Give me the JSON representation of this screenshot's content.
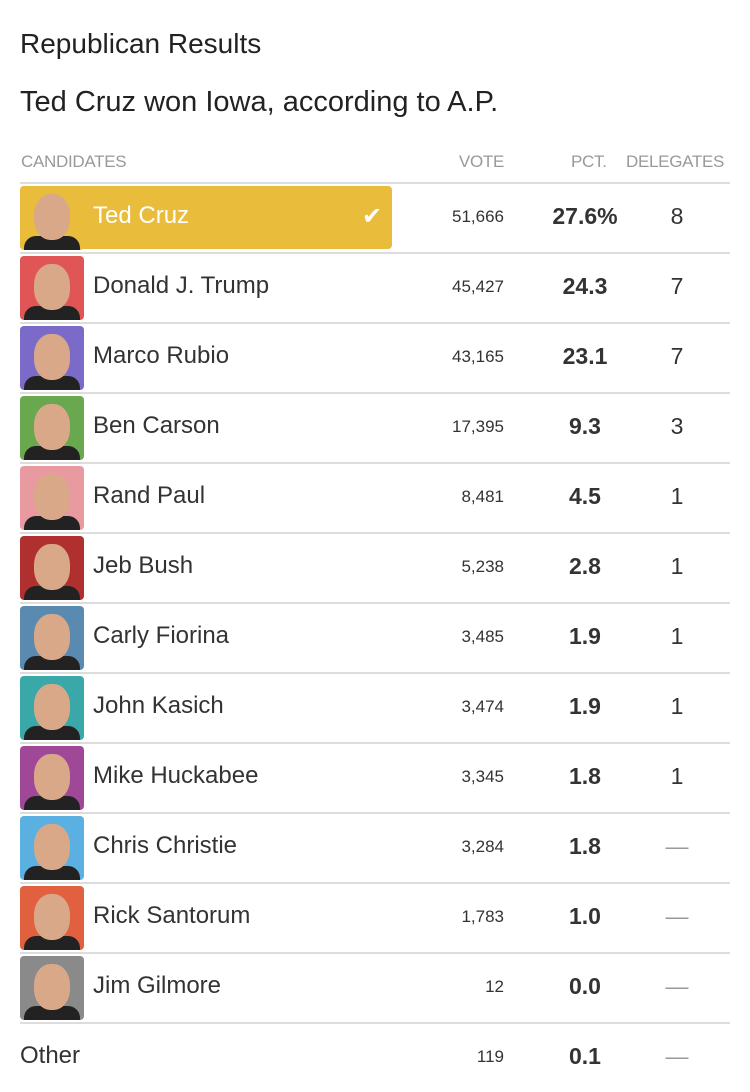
{
  "title": "Republican Results",
  "subtitle": "Ted Cruz won Iowa, according to A.P.",
  "columns": {
    "candidates": "CANDIDATES",
    "vote": "VOTE",
    "pct": "PCT.",
    "delegates": "DELEGATES"
  },
  "winner_color": "#e9bc3b",
  "rows": [
    {
      "name": "Ted Cruz",
      "vote": "51,666",
      "pct": "27.6%",
      "delegates": "8",
      "color": "#e9bc3b",
      "winner": true
    },
    {
      "name": "Donald J. Trump",
      "vote": "45,427",
      "pct": "24.3",
      "delegates": "7",
      "color": "#e05555"
    },
    {
      "name": "Marco Rubio",
      "vote": "43,165",
      "pct": "23.1",
      "delegates": "7",
      "color": "#7b6ac8"
    },
    {
      "name": "Ben Carson",
      "vote": "17,395",
      "pct": "9.3",
      "delegates": "3",
      "color": "#6aa84f"
    },
    {
      "name": "Rand Paul",
      "vote": "8,481",
      "pct": "4.5",
      "delegates": "1",
      "color": "#e89aa0"
    },
    {
      "name": "Jeb Bush",
      "vote": "5,238",
      "pct": "2.8",
      "delegates": "1",
      "color": "#b03030"
    },
    {
      "name": "Carly Fiorina",
      "vote": "3,485",
      "pct": "1.9",
      "delegates": "1",
      "color": "#5a8ab0"
    },
    {
      "name": "John Kasich",
      "vote": "3,474",
      "pct": "1.9",
      "delegates": "1",
      "color": "#3aa8a8"
    },
    {
      "name": "Mike Huckabee",
      "vote": "3,345",
      "pct": "1.8",
      "delegates": "1",
      "color": "#a04898"
    },
    {
      "name": "Chris Christie",
      "vote": "3,284",
      "pct": "1.8",
      "delegates": "—",
      "color": "#5ab0e0"
    },
    {
      "name": "Rick Santorum",
      "vote": "1,783",
      "pct": "1.0",
      "delegates": "—",
      "color": "#e06040"
    },
    {
      "name": "Jim Gilmore",
      "vote": "12",
      "pct": "0.0",
      "delegates": "—",
      "color": "#8a8a8a"
    },
    {
      "name": "Other",
      "vote": "119",
      "pct": "0.1",
      "delegates": "—",
      "noavatar": true
    }
  ]
}
